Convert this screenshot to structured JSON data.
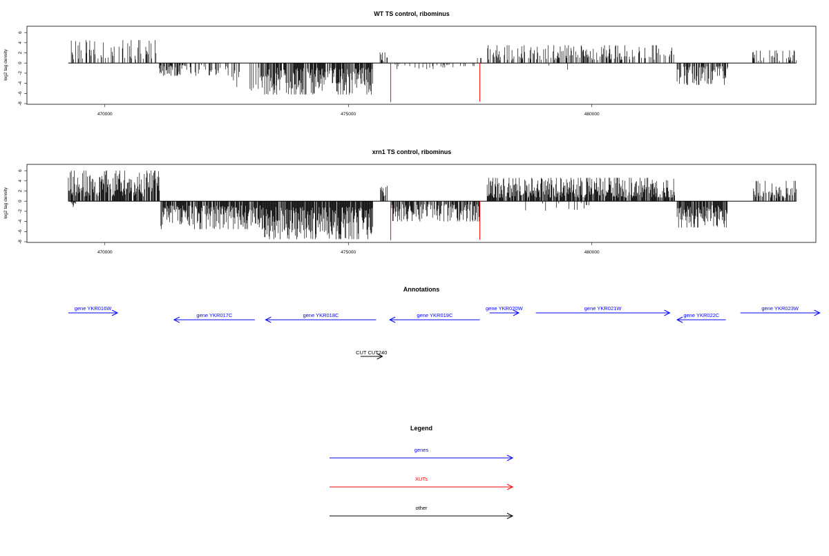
{
  "colors": {
    "gene": "#0000ff",
    "xut": "#ff0000",
    "other": "#000000",
    "bar": "#000000",
    "frame": "#000000"
  },
  "chart_data": [
    {
      "type": "bar",
      "title": "WT TS control, ribominus",
      "ylabel": "log2 tag density",
      "xlim": [
        468400,
        484600
      ],
      "ylim": [
        -8,
        6.7
      ],
      "x_ticks": [
        470000,
        475000,
        480000
      ],
      "x_tick_labels": [
        "470000",
        "475000",
        "480000"
      ],
      "y_ticks": [
        -8,
        -6,
        -4,
        -2,
        0,
        2,
        4,
        6
      ],
      "y_tick_labels": [
        "-8",
        "-6",
        "-4",
        "-2",
        "0",
        "2",
        "4",
        "6"
      ],
      "baseline_range": [
        469250,
        484200
      ],
      "xut_marks": [
        {
          "x": 475870,
          "value": -7.7
        },
        {
          "x": 477700,
          "value": -7.6
        }
      ],
      "regions": [
        {
          "start": 469250,
          "end": 471050,
          "sign": 1,
          "max": 4.5,
          "density": 0.35
        },
        {
          "start": 471120,
          "end": 471700,
          "sign": -1,
          "max": 2.5,
          "density": 0.5
        },
        {
          "start": 471700,
          "end": 472600,
          "sign": -1,
          "max": 2.5,
          "density": 0.3
        },
        {
          "start": 472600,
          "end": 473200,
          "sign": -1,
          "max": 5.5,
          "density": 0.4
        },
        {
          "start": 473200,
          "end": 475500,
          "sign": -1,
          "max": 6.2,
          "density": 0.85
        },
        {
          "start": 475650,
          "end": 475800,
          "sign": 1,
          "max": 2.1,
          "density": 0.5
        },
        {
          "start": 475900,
          "end": 477600,
          "sign": -1,
          "max": 1.2,
          "density": 0.15
        },
        {
          "start": 477650,
          "end": 477750,
          "sign": 1,
          "max": 1.0,
          "density": 0.3
        },
        {
          "start": 477850,
          "end": 481700,
          "sign": 1,
          "max": 3.5,
          "density": 0.38
        },
        {
          "start": 478700,
          "end": 479900,
          "sign": -1,
          "max": 1.8,
          "density": 0.05
        },
        {
          "start": 481750,
          "end": 482800,
          "sign": -1,
          "max": 4.3,
          "density": 0.6
        },
        {
          "start": 483300,
          "end": 484200,
          "sign": 1,
          "max": 2.5,
          "density": 0.3
        }
      ]
    },
    {
      "type": "bar",
      "title": "xrn1 TS control, ribominus",
      "ylabel": "log2 tag density",
      "xlim": [
        468400,
        484600
      ],
      "ylim": [
        -8,
        6.7
      ],
      "x_ticks": [
        470000,
        475000,
        480000
      ],
      "x_tick_labels": [
        "470000",
        "475000",
        "480000"
      ],
      "y_ticks": [
        -8,
        -6,
        -4,
        -2,
        0,
        2,
        4,
        6
      ],
      "y_tick_labels": [
        "-8",
        "-6",
        "-4",
        "-2",
        "0",
        "2",
        "4",
        "6"
      ],
      "baseline_range": [
        469250,
        484200
      ],
      "xut_marks": [
        {
          "x": 475870,
          "value": -7.7
        },
        {
          "x": 477700,
          "value": -7.6
        }
      ],
      "regions": [
        {
          "start": 469250,
          "end": 471120,
          "sign": 1,
          "max": 6.0,
          "density": 0.8
        },
        {
          "start": 469300,
          "end": 469400,
          "sign": -1,
          "max": 1.2,
          "density": 0.5
        },
        {
          "start": 471150,
          "end": 473200,
          "sign": -1,
          "max": 5.5,
          "density": 0.85
        },
        {
          "start": 473200,
          "end": 475500,
          "sign": -1,
          "max": 7.5,
          "density": 0.95
        },
        {
          "start": 475650,
          "end": 475800,
          "sign": 1,
          "max": 3.0,
          "density": 0.6
        },
        {
          "start": 475880,
          "end": 477700,
          "sign": -1,
          "max": 4.0,
          "density": 0.7
        },
        {
          "start": 477850,
          "end": 481700,
          "sign": 1,
          "max": 4.6,
          "density": 0.85
        },
        {
          "start": 478600,
          "end": 480200,
          "sign": -1,
          "max": 2.0,
          "density": 0.08
        },
        {
          "start": 481750,
          "end": 482800,
          "sign": -1,
          "max": 5.2,
          "density": 0.85
        },
        {
          "start": 483300,
          "end": 484200,
          "sign": 1,
          "max": 4.0,
          "density": 0.55
        }
      ]
    }
  ],
  "annotations": {
    "title": "Annotations",
    "genes": [
      {
        "label": "gene YKR016W",
        "start": 469250,
        "end": 470260,
        "strand": "+",
        "row": 1
      },
      {
        "label": "gene YKR017C",
        "start": 471420,
        "end": 473080,
        "strand": "-",
        "row": 2
      },
      {
        "label": "gene YKR018C",
        "start": 473300,
        "end": 475570,
        "strand": "-",
        "row": 2
      },
      {
        "label": "gene YKR019C",
        "start": 475850,
        "end": 477700,
        "strand": "-",
        "row": 2
      },
      {
        "label": "gene YKR020W",
        "start": 477900,
        "end": 478500,
        "strand": "+",
        "row": 1
      },
      {
        "label": "gene YKR021W",
        "start": 478850,
        "end": 481600,
        "strand": "+",
        "row": 1
      },
      {
        "label": "gene YKR022C",
        "start": 481750,
        "end": 482750,
        "strand": "-",
        "row": 2
      },
      {
        "label": "gene YKR023W",
        "start": 483050,
        "end": 484680,
        "strand": "+",
        "row": 1
      }
    ],
    "other": [
      {
        "label": "CUT CUT240",
        "start": 475250,
        "end": 475700,
        "strand": "+"
      }
    ]
  },
  "legend": {
    "title": "Legend",
    "items": [
      {
        "label": "genes",
        "color": "#0000ff"
      },
      {
        "label": "XUTs",
        "color": "#ff0000"
      },
      {
        "label": "other",
        "color": "#000000"
      }
    ]
  }
}
